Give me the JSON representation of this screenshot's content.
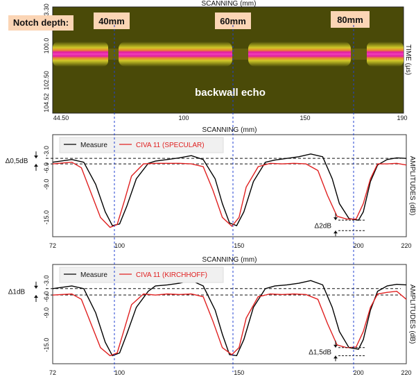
{
  "bscan": {
    "xlabel": "SCANNING (mm)",
    "ylabel": "TIME (µs)",
    "yticks": [
      "3.30",
      "100.0",
      "102.50",
      "104.52"
    ],
    "xticks": [
      "44.50",
      "100",
      "150",
      "190"
    ],
    "notch_label": "Notch depth:",
    "notch_tags": [
      "40mm",
      "60mm",
      "80mm"
    ],
    "echo_label": "backwall echo",
    "colors": {
      "background": "#4a4a08",
      "band_outer": "#c8c020",
      "band_mid": "#e07030",
      "band_core": "#e020a0"
    }
  },
  "chart_data": [
    {
      "type": "line",
      "xlabel": "SCANNING (mm)",
      "ylabel": "AMPLITUDES (dB)",
      "xlim": [
        72,
        220
      ],
      "ylim": [
        -18.5,
        0
      ],
      "xticks": [
        "72",
        "100",
        "150",
        "200",
        "220"
      ],
      "yticks": [
        "-3.0",
        "-6.0",
        "-9.0",
        "-15.0"
      ],
      "legend": {
        "placement": "top-left"
      },
      "series": [
        {
          "name": "Measure",
          "color": "#000000",
          "x": [
            72,
            80,
            85,
            90,
            94,
            97,
            100,
            103,
            107,
            112,
            115,
            120,
            125,
            130,
            135,
            140,
            143,
            146,
            149,
            152,
            156,
            161,
            165,
            170,
            175,
            180,
            185,
            189,
            192,
            196,
            200,
            202,
            205,
            208,
            212,
            216,
            220
          ],
          "y": [
            -5.0,
            -4.5,
            -5.0,
            -9.0,
            -14.0,
            -16.5,
            -16.2,
            -13.0,
            -8.0,
            -5.2,
            -4.8,
            -4.5,
            -4.2,
            -3.8,
            -4.5,
            -8.0,
            -12.5,
            -16.0,
            -16.5,
            -14.0,
            -8.5,
            -5.0,
            -4.6,
            -4.3,
            -4.0,
            -3.5,
            -4.0,
            -8.0,
            -12.5,
            -15.2,
            -15.5,
            -14.0,
            -8.5,
            -5.5,
            -4.5,
            -4.2,
            -4.3
          ]
        },
        {
          "name": "CIVA 11 (SPECULAR)",
          "color": "#e02020",
          "x": [
            72,
            80,
            84,
            88,
            92,
            96,
            99,
            102,
            105,
            110,
            115,
            120,
            125,
            130,
            135,
            139,
            143,
            147,
            150,
            153,
            158,
            163,
            168,
            173,
            178,
            183,
            187,
            191,
            195,
            199,
            202,
            205,
            208,
            212,
            216,
            220
          ],
          "y": [
            -5.3,
            -5.0,
            -6.0,
            -10.5,
            -15.0,
            -16.8,
            -16.3,
            -12.0,
            -7.5,
            -5.3,
            -5.2,
            -5.2,
            -5.2,
            -5.3,
            -5.8,
            -10.0,
            -15.0,
            -16.6,
            -15.0,
            -9.5,
            -5.8,
            -5.2,
            -5.3,
            -5.2,
            -5.3,
            -6.5,
            -11.0,
            -14.8,
            -15.3,
            -15.3,
            -12.5,
            -8.0,
            -5.3,
            -5.3,
            -5.2,
            -5.5
          ]
        }
      ],
      "annotations": [
        {
          "text": "Δ0,5dB"
        },
        {
          "text": "Δ2dB"
        }
      ]
    },
    {
      "type": "line",
      "xlabel": "SCANNING (mm)",
      "ylabel": "AMPLITUDES (dB)",
      "xlim": [
        72,
        220
      ],
      "ylim": [
        -18.5,
        0
      ],
      "xticks": [
        "72",
        "100",
        "150",
        "200",
        "220"
      ],
      "yticks": [
        "-3.0",
        "-6.0",
        "-9.0",
        "-15.0"
      ],
      "legend": {
        "placement": "top-left"
      },
      "series": [
        {
          "name": "Measure",
          "color": "#000000",
          "x": [
            72,
            80,
            85,
            90,
            94,
            97,
            100,
            103,
            107,
            112,
            115,
            120,
            125,
            130,
            135,
            140,
            143,
            146,
            149,
            152,
            156,
            161,
            165,
            170,
            175,
            180,
            185,
            189,
            192,
            196,
            200,
            202,
            205,
            208,
            212,
            216,
            220
          ],
          "y": [
            -4.5,
            -4.0,
            -4.5,
            -9.0,
            -14.5,
            -17.0,
            -16.5,
            -13.0,
            -8.0,
            -5.0,
            -4.0,
            -3.8,
            -3.5,
            -3.0,
            -4.0,
            -8.5,
            -13.0,
            -16.8,
            -17.0,
            -14.0,
            -8.0,
            -4.5,
            -4.0,
            -3.8,
            -3.5,
            -3.0,
            -3.8,
            -8.0,
            -12.5,
            -15.5,
            -15.8,
            -14.0,
            -8.5,
            -5.0,
            -4.0,
            -3.7,
            -3.8
          ]
        },
        {
          "name": "CIVA 11 (KIRCHHOFF)",
          "color": "#e02020",
          "x": [
            72,
            80,
            84,
            88,
            92,
            96,
            99,
            102,
            105,
            110,
            115,
            120,
            125,
            130,
            135,
            139,
            143,
            147,
            150,
            153,
            158,
            163,
            168,
            173,
            178,
            183,
            187,
            191,
            195,
            199,
            202,
            205,
            208,
            212,
            216,
            220
          ],
          "y": [
            -5.7,
            -5.5,
            -6.5,
            -11.0,
            -15.5,
            -17.0,
            -16.5,
            -12.0,
            -7.5,
            -5.5,
            -5.7,
            -5.5,
            -5.6,
            -5.5,
            -6.0,
            -10.5,
            -15.5,
            -16.8,
            -15.5,
            -10.0,
            -6.0,
            -5.5,
            -5.6,
            -5.5,
            -5.6,
            -6.5,
            -11.0,
            -15.0,
            -15.5,
            -15.4,
            -12.5,
            -8.0,
            -5.5,
            -5.2,
            -5.0,
            -6.5
          ]
        }
      ],
      "annotations": [
        {
          "text": "Δ1dB"
        },
        {
          "text": "Δ1,5dB"
        }
      ]
    }
  ]
}
